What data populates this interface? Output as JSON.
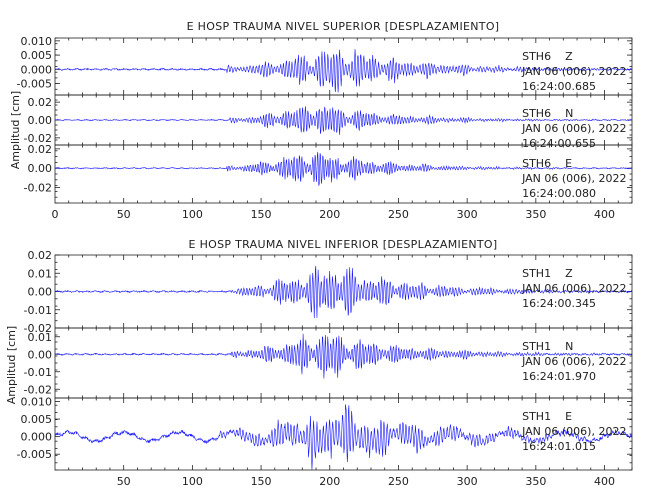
{
  "chart_data": [
    {
      "type": "line",
      "title": "E HOSP TRAUMA NIVEL SUPERIOR [DESPLAZAMIENTO]",
      "ylabel": "Amplitud [cm]",
      "xlabel": "",
      "xlim": [
        0,
        420
      ],
      "xticks": [
        "0",
        "50",
        "100",
        "150",
        "200",
        "250",
        "300",
        "350",
        "400"
      ],
      "xtick_values": [
        0,
        50,
        100,
        150,
        200,
        250,
        300,
        350,
        400
      ],
      "grid": false,
      "color": "#1a1aff",
      "panels": [
        {
          "station": "STH6",
          "component": "Z",
          "date": "JAN 06 (006), 2022",
          "time": "16:24:00.685",
          "ylim": [
            -0.009,
            0.011
          ],
          "yticks": [
            "0.010",
            "0.005",
            "0.000",
            "-0.005"
          ],
          "ytick_values": [
            0.01,
            0.005,
            0.0,
            -0.005
          ],
          "noise": 0.0002,
          "onset": 125,
          "peak": 0.009,
          "peak_time": 205,
          "decay": 55,
          "period": 2.2,
          "seed": 11,
          "drift": 0.0
        },
        {
          "station": "STH6",
          "component": "N",
          "date": "JAN 06 (006), 2022",
          "time": "16:24:00.655",
          "ylim": [
            -0.028,
            0.028
          ],
          "yticks": [
            "0.02",
            "0.00",
            "-0.02"
          ],
          "ytick_values": [
            0.02,
            0.0,
            -0.02
          ],
          "noise": 0.0004,
          "onset": 127,
          "peak": 0.022,
          "peak_time": 190,
          "decay": 50,
          "period": 2.0,
          "seed": 23,
          "drift": 0.0
        },
        {
          "station": "STH6",
          "component": "E",
          "date": "JAN 06 (006), 2022",
          "time": "16:24:00.080",
          "ylim": [
            -0.036,
            0.024
          ],
          "yticks": [
            "0.02",
            "0.00",
            "-0.02"
          ],
          "ytick_values": [
            0.02,
            0.0,
            -0.02
          ],
          "noise": 0.0004,
          "onset": 125,
          "peak": 0.022,
          "peak_time": 190,
          "decay": 45,
          "period": 1.9,
          "seed": 37,
          "drift": 0.0
        }
      ]
    },
    {
      "type": "line",
      "title": "E HOSP TRAUMA NIVEL INFERIOR [DESPLAZAMIENTO]",
      "ylabel": "Amplitud [cm]",
      "xlabel": "",
      "xlim": [
        0,
        420
      ],
      "xticks": [
        "50",
        "100",
        "150",
        "200",
        "250",
        "300",
        "350",
        "400"
      ],
      "xtick_values": [
        50,
        100,
        150,
        200,
        250,
        300,
        350,
        400
      ],
      "grid": false,
      "color": "#1a1aff",
      "panels": [
        {
          "station": "STH1",
          "component": "Z",
          "date": "JAN 06 (006), 2022",
          "time": "16:24:00.345",
          "ylim": [
            -0.02,
            0.02
          ],
          "yticks": [
            "0.02",
            "0.01",
            "0.00",
            "-0.01",
            "-0.02"
          ],
          "ytick_values": [
            0.02,
            0.01,
            0.0,
            -0.01,
            -0.02
          ],
          "noise": 0.0003,
          "onset": 128,
          "peak": 0.016,
          "peak_time": 200,
          "decay": 55,
          "period": 2.1,
          "seed": 51,
          "drift": 0.0
        },
        {
          "station": "STH1",
          "component": "N",
          "date": "JAN 06 (006), 2022",
          "time": "16:24:01.970",
          "ylim": [
            -0.025,
            0.015
          ],
          "yticks": [
            "0.01",
            "0.00",
            "-0.01",
            "-0.02"
          ],
          "ytick_values": [
            0.01,
            0.0,
            -0.01,
            -0.02
          ],
          "noise": 0.0003,
          "onset": 128,
          "peak": 0.015,
          "peak_time": 195,
          "decay": 55,
          "period": 2.0,
          "seed": 67,
          "drift": 0.0
        },
        {
          "station": "STH1",
          "component": "E",
          "date": "JAN 06 (006), 2022",
          "time": "16:24:01.015",
          "ylim": [
            -0.0095,
            0.011
          ],
          "yticks": [
            "0.010",
            "0.005",
            "0.000",
            "-0.005"
          ],
          "ytick_values": [
            0.01,
            0.005,
            0.0,
            -0.005
          ],
          "noise": 0.0004,
          "onset": 120,
          "peak": 0.009,
          "peak_time": 205,
          "decay": 65,
          "period": 2.3,
          "seed": 83,
          "drift": 0.0012
        }
      ]
    }
  ]
}
